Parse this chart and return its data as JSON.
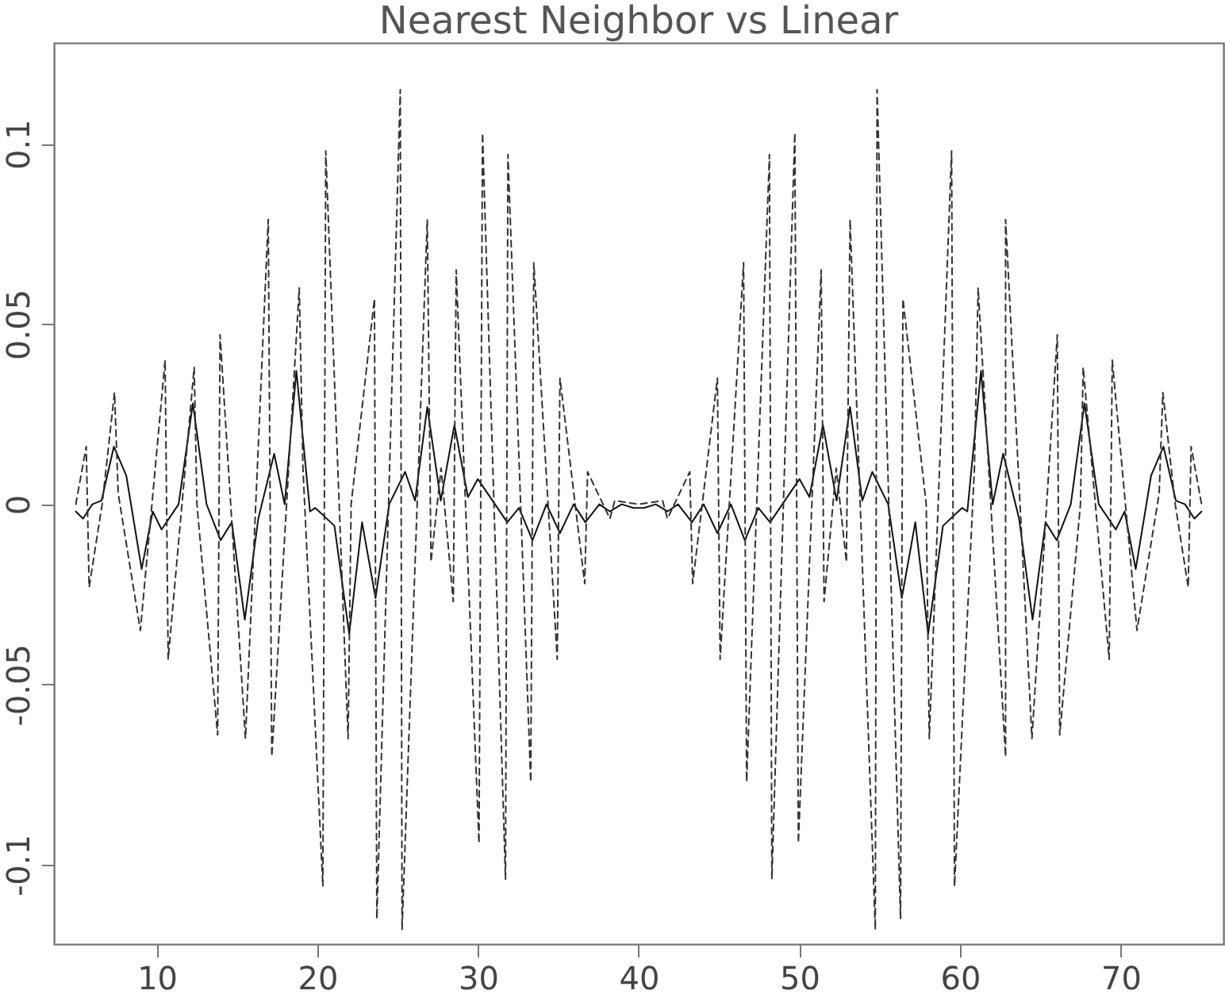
{
  "chart_data": {
    "type": "line",
    "title": "Nearest Neighbor vs Linear",
    "xlim": [
      3.6,
      76.4
    ],
    "xticks": [
      10,
      20,
      30,
      40,
      50,
      60,
      70
    ],
    "ylim": [
      -0.122,
      0.128
    ],
    "yticks": [
      -0.1,
      -0.05,
      0,
      0.05,
      0.1
    ],
    "grid": false,
    "series": [
      {
        "color": "#111111",
        "line_style": "solid",
        "x": [
          4.96,
          5.41,
          5.99,
          6.56,
          7.33,
          8.1,
          9.06,
          9.75,
          10.3,
          11.36,
          12.25,
          13.1,
          13.98,
          14.67,
          15.48,
          16.32,
          17.31,
          17.96,
          18.69,
          19.54,
          19.87,
          21.06,
          21.98,
          22.78,
          23.62,
          24.47,
          25.46,
          26.08,
          26.84,
          27.68,
          28.53,
          29.37,
          29.99,
          31.82,
          32.55,
          33.39,
          34.26,
          35.1,
          35.95,
          36.68,
          37.55,
          38.21,
          38.94,
          39.67,
          40,
          40.33,
          41.06,
          41.79,
          42.45,
          43.32,
          44.05,
          44.9,
          45.74,
          46.61,
          47.45,
          48.18,
          50.01,
          50.63,
          51.47,
          52.32,
          53.16,
          53.92,
          54.54,
          55.53,
          56.38,
          57.22,
          58.02,
          58.94,
          60.13,
          60.46,
          61.31,
          62.04,
          62.69,
          63.68,
          64.52,
          65.33,
          66.02,
          66.9,
          67.75,
          68.64,
          69.7,
          70.25,
          70.94,
          71.9,
          72.67,
          73.44,
          74.01,
          74.59,
          75.04
        ],
        "values": [
          -0.002,
          -0.004,
          0,
          0.001,
          0.016,
          0.008,
          -0.018,
          -0.002,
          -0.007,
          0,
          0.028,
          0,
          -0.01,
          -0.005,
          -0.032,
          -0.004,
          0.014,
          0,
          0.037,
          -0.002,
          -0.001,
          -0.006,
          -0.036,
          -0.005,
          -0.026,
          0,
          0.009,
          0.001,
          0.027,
          0.001,
          0.022,
          0.002,
          0.007,
          -0.005,
          -0.001,
          -0.01,
          0,
          -0.008,
          0,
          -0.005,
          0,
          -0.002,
          0,
          -0.001,
          -0.001,
          -0.001,
          0,
          -0.002,
          0,
          -0.005,
          0,
          -0.008,
          0,
          -0.01,
          -0.001,
          -0.005,
          0.007,
          0.002,
          0.022,
          0.001,
          0.027,
          0.001,
          0.009,
          0,
          -0.026,
          -0.005,
          -0.036,
          -0.006,
          -0.001,
          -0.002,
          0.037,
          0,
          0.014,
          -0.004,
          -0.032,
          -0.005,
          -0.01,
          0,
          0.028,
          0,
          -0.007,
          -0.002,
          -0.018,
          0.008,
          0.016,
          0.001,
          0,
          -0.004,
          -0.002
        ]
      },
      {
        "color": "#333333",
        "line_style": "dashed",
        "x": [
          4.96,
          5.61,
          5.79,
          6.6,
          7.37,
          7.6,
          8.98,
          10.52,
          10.71,
          12.33,
          12.5,
          13.79,
          13.94,
          15.52,
          16.94,
          17.16,
          18.87,
          19.1,
          20.34,
          20.52,
          21.91,
          22.1,
          23.55,
          23.7,
          25.16,
          25.27,
          26.84,
          27.07,
          27.7,
          28.46,
          28.64,
          30.06,
          30.28,
          31.71,
          31.86,
          33.28,
          33.47,
          34.93,
          35.1,
          36.64,
          36.82,
          38.21,
          38.51,
          40,
          41.49,
          41.79,
          43.18,
          43.36,
          44.9,
          45.07,
          46.53,
          46.72,
          48.14,
          48.29,
          49.72,
          49.94,
          51.36,
          51.54,
          52.3,
          52.93,
          53.16,
          54.73,
          54.84,
          56.3,
          56.45,
          57.9,
          58.09,
          59.48,
          59.66,
          60.9,
          61.13,
          62.84,
          62.84,
          64.48,
          66.06,
          66.21,
          67.5,
          67.67,
          69.29,
          69.48,
          71.02,
          72.4,
          72.63,
          73.4,
          74.21,
          74.39,
          75.04
        ],
        "values": [
          0,
          0.016,
          -0.023,
          0,
          0.031,
          0.003,
          -0.035,
          0.04,
          -0.043,
          0.038,
          0,
          -0.064,
          0.047,
          -0.065,
          0.079,
          -0.07,
          0.06,
          0.01,
          -0.106,
          0.098,
          -0.065,
          0,
          0.057,
          -0.115,
          0.115,
          -0.118,
          0.079,
          -0.016,
          0.01,
          -0.027,
          0.065,
          -0.094,
          0.103,
          -0.104,
          0.097,
          -0.077,
          0.067,
          -0.043,
          0.035,
          -0.022,
          0.009,
          -0.004,
          0.001,
          0,
          0.001,
          -0.004,
          0.009,
          -0.022,
          0.035,
          -0.043,
          0.067,
          -0.077,
          0.097,
          -0.104,
          0.103,
          -0.094,
          0.065,
          -0.027,
          0.01,
          -0.016,
          0.079,
          -0.118,
          0.115,
          -0.115,
          0.057,
          0,
          -0.065,
          0.098,
          -0.106,
          0.01,
          0.06,
          -0.07,
          0.079,
          -0.065,
          0.047,
          -0.064,
          0,
          0.038,
          -0.043,
          0.04,
          -0.035,
          0.003,
          0.031,
          0,
          -0.023,
          0.016,
          0
        ]
      }
    ]
  }
}
